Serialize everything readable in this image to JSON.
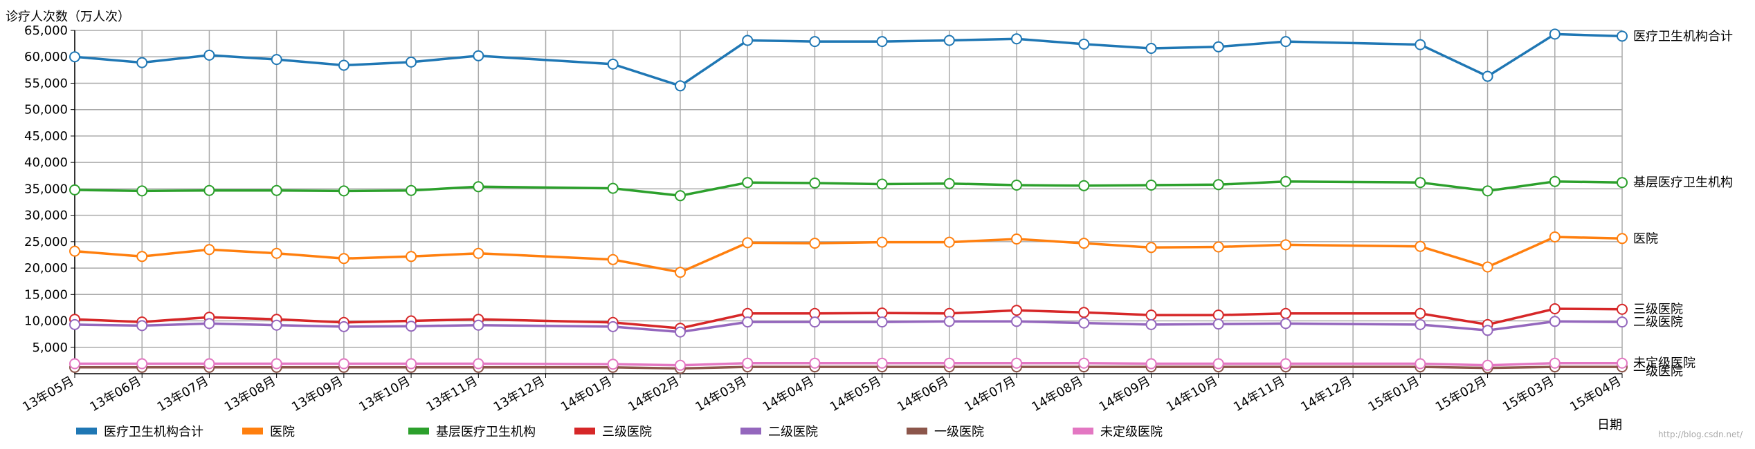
{
  "chart_data": {
    "type": "line",
    "ylabel": "诊疗人次数（万人次）",
    "xlabel": "日期",
    "ylim": [
      0,
      65000
    ],
    "y_ticks": [
      "5,000",
      "10,000",
      "15,000",
      "20,000",
      "25,000",
      "30,000",
      "35,000",
      "40,000",
      "45,000",
      "50,000",
      "55,000",
      "60,000",
      "65,000"
    ],
    "x_ticks": [
      "13年05月",
      "13年06月",
      "13年07月",
      "13年08月",
      "13年09月",
      "13年10月",
      "13年11月",
      "13年12月",
      "14年01月",
      "14年02月",
      "14年03月",
      "14年04月",
      "14年05月",
      "14年06月",
      "14年07月",
      "14年08月",
      "14年09月",
      "14年10月",
      "14年11月",
      "14年12月",
      "15年01月",
      "15年02月",
      "15年03月",
      "15年04月"
    ],
    "x": [
      "13年05月",
      "13年06月",
      "13年07月",
      "13年08月",
      "13年09月",
      "13年10月",
      "13年11月",
      "14年01月",
      "14年02月",
      "14年03月",
      "14年04月",
      "14年05月",
      "14年06月",
      "14年07月",
      "14年08月",
      "14年09月",
      "14年10月",
      "14年11月",
      "15年01月",
      "15年02月",
      "15年03月",
      "15年04月"
    ],
    "grid": true,
    "legend_position": "bottom",
    "series": [
      {
        "name": "医疗卫生机构合计",
        "color": "#1f77b4",
        "end_label": "医疗卫生机构合计",
        "values": [
          60000,
          58900,
          60300,
          59500,
          58400,
          59000,
          60200,
          58600,
          54500,
          63100,
          62900,
          62900,
          63100,
          63400,
          62400,
          61600,
          61900,
          62900,
          62300,
          56300,
          64300,
          63900
        ]
      },
      {
        "name": "医院",
        "color": "#ff7f0e",
        "end_label": "医院",
        "values": [
          23200,
          22200,
          23500,
          22800,
          21800,
          22200,
          22800,
          21600,
          19200,
          24800,
          24700,
          24900,
          24900,
          25500,
          24700,
          23900,
          24000,
          24400,
          24100,
          20200,
          25900,
          25600
        ]
      },
      {
        "name": "基层医疗卫生机构",
        "color": "#2ca02c",
        "end_label": "基层医疗卫生机构",
        "values": [
          34800,
          34600,
          34700,
          34700,
          34600,
          34700,
          35400,
          35100,
          33700,
          36200,
          36100,
          35900,
          36000,
          35700,
          35600,
          35700,
          35800,
          36400,
          36200,
          34600,
          36400,
          36200
        ]
      },
      {
        "name": "三级医院",
        "color": "#d62728",
        "end_label": "三级医院",
        "values": [
          10300,
          9800,
          10700,
          10300,
          9700,
          10000,
          10300,
          9700,
          8600,
          11400,
          11400,
          11500,
          11400,
          12000,
          11600,
          11100,
          11100,
          11400,
          11400,
          9300,
          12300,
          12200
        ]
      },
      {
        "name": "二级医院",
        "color": "#9467bd",
        "end_label": "二级医院",
        "values": [
          9300,
          9100,
          9500,
          9200,
          8900,
          9000,
          9200,
          8900,
          7900,
          9800,
          9800,
          9800,
          9900,
          9900,
          9600,
          9300,
          9400,
          9500,
          9300,
          8200,
          9900,
          9800
        ]
      },
      {
        "name": "一级医院",
        "color": "#8c564b",
        "end_label": "一级医院",
        "values": [
          1200,
          1200,
          1200,
          1200,
          1200,
          1200,
          1200,
          1200,
          1000,
          1300,
          1300,
          1300,
          1300,
          1300,
          1300,
          1300,
          1300,
          1300,
          1300,
          1100,
          1300,
          1300
        ]
      },
      {
        "name": "未定级医院",
        "color": "#e377c2",
        "end_label": "未定级医院",
        "values": [
          1900,
          1900,
          1900,
          1900,
          1900,
          1900,
          1900,
          1800,
          1600,
          2000,
          2000,
          2000,
          2000,
          2000,
          2000,
          1900,
          1900,
          1900,
          1900,
          1600,
          2000,
          2000
        ]
      }
    ]
  },
  "watermark": "http://blog.csdn.net/"
}
